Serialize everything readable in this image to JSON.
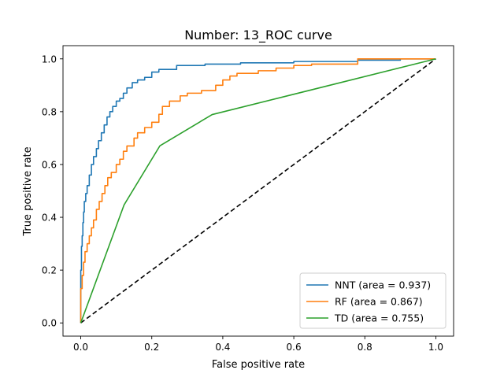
{
  "chart_data": {
    "type": "line",
    "title": "Number: 13_ROC curve",
    "xlabel": "False positive rate",
    "ylabel": "True positive rate",
    "xlim": [
      -0.05,
      1.05
    ],
    "ylim": [
      -0.05,
      1.05
    ],
    "xticks": [
      0.0,
      0.2,
      0.4,
      0.6,
      0.8,
      1.0
    ],
    "yticks": [
      0.0,
      0.2,
      0.4,
      0.6,
      0.8,
      1.0
    ],
    "xtick_labels": [
      "0.0",
      "0.2",
      "0.4",
      "0.6",
      "0.8",
      "1.0"
    ],
    "ytick_labels": [
      "0.0",
      "0.2",
      "0.4",
      "0.6",
      "0.8",
      "1.0"
    ],
    "grid": false,
    "legend_position": "lower-right",
    "series": [
      {
        "name": "NNT (area = 0.937)",
        "color": "#1f77b4",
        "style": "step",
        "points": [
          [
            0.0,
            0.0
          ],
          [
            0.0,
            0.1
          ],
          [
            0.002,
            0.2
          ],
          [
            0.004,
            0.29
          ],
          [
            0.006,
            0.33
          ],
          [
            0.008,
            0.38
          ],
          [
            0.01,
            0.42
          ],
          [
            0.014,
            0.46
          ],
          [
            0.018,
            0.49
          ],
          [
            0.024,
            0.52
          ],
          [
            0.03,
            0.56
          ],
          [
            0.036,
            0.6
          ],
          [
            0.044,
            0.63
          ],
          [
            0.05,
            0.66
          ],
          [
            0.058,
            0.69
          ],
          [
            0.066,
            0.72
          ],
          [
            0.074,
            0.75
          ],
          [
            0.082,
            0.78
          ],
          [
            0.09,
            0.8
          ],
          [
            0.1,
            0.82
          ],
          [
            0.11,
            0.84
          ],
          [
            0.12,
            0.85
          ],
          [
            0.13,
            0.87
          ],
          [
            0.145,
            0.89
          ],
          [
            0.16,
            0.91
          ],
          [
            0.18,
            0.92
          ],
          [
            0.2,
            0.93
          ],
          [
            0.22,
            0.95
          ],
          [
            0.27,
            0.96
          ],
          [
            0.35,
            0.975
          ],
          [
            0.45,
            0.98
          ],
          [
            0.6,
            0.985
          ],
          [
            0.78,
            0.99
          ],
          [
            0.9,
            0.995
          ],
          [
            1.0,
            1.0
          ]
        ]
      },
      {
        "name": "RF (area = 0.867)",
        "color": "#ff7f0e",
        "style": "step",
        "points": [
          [
            0.0,
            0.0
          ],
          [
            0.0,
            0.07
          ],
          [
            0.004,
            0.13
          ],
          [
            0.008,
            0.18
          ],
          [
            0.012,
            0.23
          ],
          [
            0.018,
            0.27
          ],
          [
            0.024,
            0.3
          ],
          [
            0.03,
            0.33
          ],
          [
            0.036,
            0.36
          ],
          [
            0.044,
            0.39
          ],
          [
            0.052,
            0.43
          ],
          [
            0.06,
            0.46
          ],
          [
            0.068,
            0.49
          ],
          [
            0.076,
            0.52
          ],
          [
            0.086,
            0.55
          ],
          [
            0.1,
            0.57
          ],
          [
            0.11,
            0.6
          ],
          [
            0.12,
            0.62
          ],
          [
            0.13,
            0.65
          ],
          [
            0.15,
            0.67
          ],
          [
            0.16,
            0.7
          ],
          [
            0.18,
            0.72
          ],
          [
            0.2,
            0.74
          ],
          [
            0.22,
            0.76
          ],
          [
            0.23,
            0.79
          ],
          [
            0.25,
            0.82
          ],
          [
            0.28,
            0.84
          ],
          [
            0.3,
            0.86
          ],
          [
            0.34,
            0.87
          ],
          [
            0.38,
            0.88
          ],
          [
            0.4,
            0.9
          ],
          [
            0.42,
            0.92
          ],
          [
            0.44,
            0.935
          ],
          [
            0.47,
            0.945
          ],
          [
            0.5,
            0.945
          ],
          [
            0.55,
            0.955
          ],
          [
            0.6,
            0.965
          ],
          [
            0.65,
            0.975
          ],
          [
            0.78,
            0.98
          ],
          [
            0.85,
            1.0
          ],
          [
            1.0,
            1.0
          ]
        ]
      },
      {
        "name": "TD (area = 0.755)",
        "color": "#2ca02c",
        "style": "line",
        "points": [
          [
            0.0,
            0.0
          ],
          [
            0.122,
            0.447
          ],
          [
            0.223,
            0.671
          ],
          [
            0.37,
            0.789
          ],
          [
            1.0,
            1.0
          ]
        ]
      }
    ],
    "reference_line": {
      "points": [
        [
          0.0,
          0.0
        ],
        [
          1.0,
          1.0
        ]
      ],
      "color": "#000000",
      "dash": true
    }
  }
}
